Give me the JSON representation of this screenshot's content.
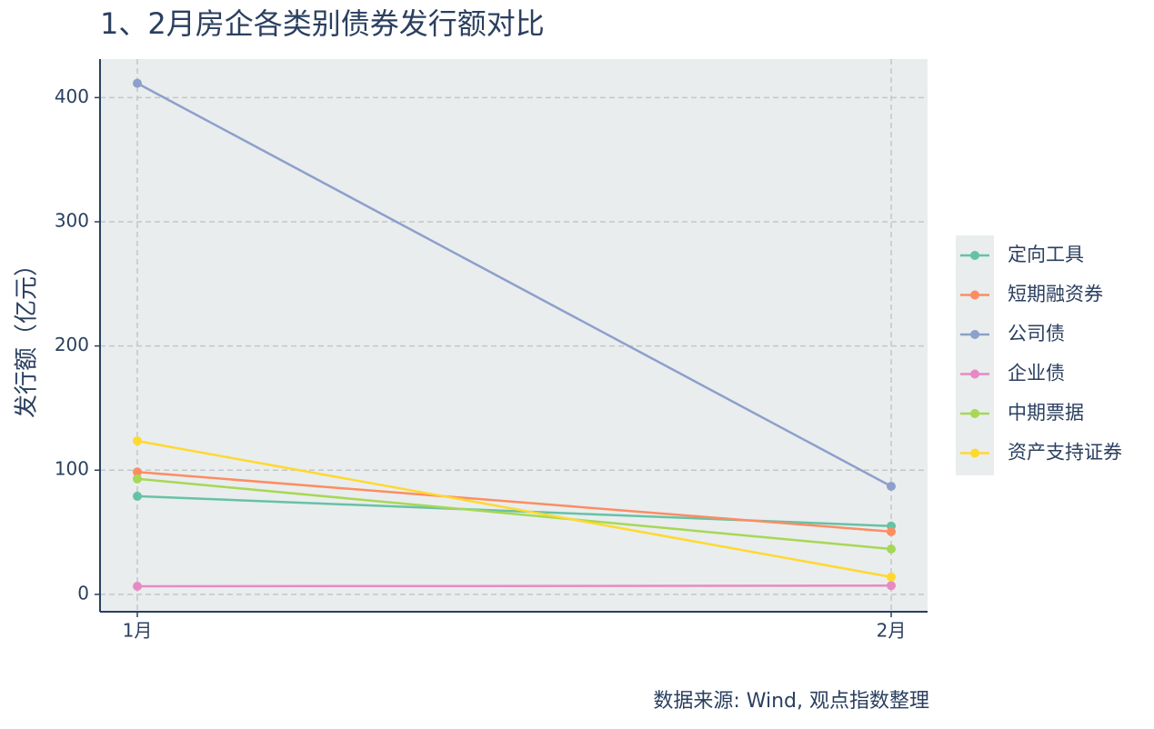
{
  "chart_data": {
    "type": "line",
    "title": "1、2月房企各类别债券发行额对比",
    "y_label": "发行额（亿元）",
    "source": "数据来源: Wind, 观点指数整理",
    "categories": [
      "1月",
      "2月"
    ],
    "series": [
      {
        "name": "定向工具",
        "color": "#66c2a5",
        "values": [
          79,
          55
        ]
      },
      {
        "name": "短期融资券",
        "color": "#fc8d62",
        "values": [
          98.5,
          50.5
        ]
      },
      {
        "name": "公司债",
        "color": "#8da0cb",
        "values": [
          411.5,
          87
        ]
      },
      {
        "name": "企业债",
        "color": "#e78ac3",
        "values": [
          6.5,
          7
        ]
      },
      {
        "name": "中期票据",
        "color": "#a6d854",
        "values": [
          93,
          36.5
        ]
      },
      {
        "name": "资产支持证券",
        "color": "#ffd92f",
        "values": [
          123.5,
          14
        ]
      }
    ],
    "ylim": [
      -14,
      431
    ],
    "yticks": [
      0,
      100,
      200,
      300,
      400
    ],
    "grid": true
  }
}
